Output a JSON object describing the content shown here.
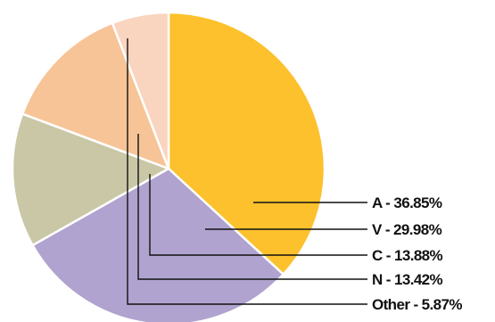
{
  "chart_data": {
    "type": "pie",
    "title": "",
    "slices": [
      {
        "key": "A",
        "label": "A - 36.85%",
        "value": 36.85,
        "color": "#FCC12C"
      },
      {
        "key": "V",
        "label": "V - 29.98%",
        "value": 29.98,
        "color": "#B0A3CF"
      },
      {
        "key": "C",
        "label": "C - 13.88%",
        "value": 13.88,
        "color": "#C9C7A6"
      },
      {
        "key": "N",
        "label": "N - 13.42%",
        "value": 13.42,
        "color": "#F7C497"
      },
      {
        "key": "Other",
        "label": "Other - 5.87%",
        "value": 5.87,
        "color": "#F9D4BE"
      }
    ],
    "legend_placement": "right",
    "leader_line_color": "#111111",
    "slice_border_color": "#ffffff"
  }
}
